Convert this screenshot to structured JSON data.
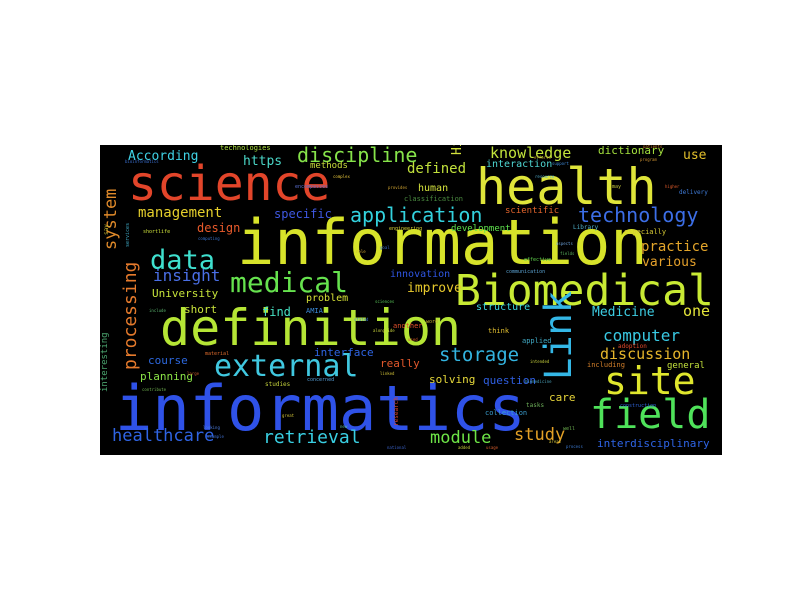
{
  "wordcloud": {
    "background": "#000000",
    "words": [
      {
        "text": "informatics",
        "color": "#2f52e8"
      },
      {
        "text": "information",
        "color": "#d7e32a"
      },
      {
        "text": "definition",
        "color": "#b5e535"
      },
      {
        "text": "health",
        "color": "#dfe53a"
      },
      {
        "text": "science",
        "color": "#e2452a"
      },
      {
        "text": "Biomedical",
        "color": "#c8ea34"
      },
      {
        "text": "field",
        "color": "#4fe25a"
      },
      {
        "text": "site",
        "color": "#dfe62d"
      },
      {
        "text": "Link",
        "color": "#34b7e6"
      },
      {
        "text": "external",
        "color": "#40c8e0"
      },
      {
        "text": "medical",
        "color": "#66e24e"
      },
      {
        "text": "data",
        "color": "#3fe0cf"
      },
      {
        "text": "application",
        "color": "#33d2de"
      },
      {
        "text": "technology",
        "color": "#3c6ee6"
      },
      {
        "text": "discipline",
        "color": "#86e34a"
      },
      {
        "text": "knowledge",
        "color": "#c2e33c"
      },
      {
        "text": "storage",
        "color": "#33b4e0"
      },
      {
        "text": "retrieval",
        "color": "#39cfe2"
      },
      {
        "text": "healthcare",
        "color": "#2f64e3"
      },
      {
        "text": "module",
        "color": "#6ee547"
      },
      {
        "text": "study",
        "color": "#e5a126"
      },
      {
        "text": "computer",
        "color": "#39c9e3"
      },
      {
        "text": "discussion",
        "color": "#e6b62b"
      },
      {
        "text": "system",
        "color": "#e08a2a"
      },
      {
        "text": "processing",
        "color": "#e57a2c"
      },
      {
        "text": "management",
        "color": "#e6d02c"
      },
      {
        "text": "insight",
        "color": "#4a6fe6"
      },
      {
        "text": "practice",
        "color": "#e3a52a"
      },
      {
        "text": "defined",
        "color": "#c1e13b"
      },
      {
        "text": "According",
        "color": "#3fd2e5"
      },
      {
        "text": "https",
        "color": "#4ad6c7"
      },
      {
        "text": "dictionary",
        "color": "#a4e13e"
      },
      {
        "text": "use",
        "color": "#e3c02c"
      },
      {
        "text": "one",
        "color": "#e5e63a"
      },
      {
        "text": "specific",
        "color": "#3f58e2"
      },
      {
        "text": "design",
        "color": "#e85a2b"
      },
      {
        "text": "find",
        "color": "#46e2c4"
      },
      {
        "text": "University",
        "color": "#c6e33a"
      },
      {
        "text": "Medicine",
        "color": "#3dcde2"
      },
      {
        "text": "various",
        "color": "#e4a02b"
      },
      {
        "text": "course",
        "color": "#2d68de"
      },
      {
        "text": "planning",
        "color": "#8be347"
      },
      {
        "text": "interface",
        "color": "#2e64e2"
      },
      {
        "text": "short",
        "color": "#c9e33c"
      },
      {
        "text": "improve",
        "color": "#e7c92d"
      },
      {
        "text": "innovation",
        "color": "#2f56e3"
      },
      {
        "text": "problem",
        "color": "#d7e237"
      },
      {
        "text": "structure",
        "color": "#3ad4e0"
      },
      {
        "text": "really",
        "color": "#e2582c"
      },
      {
        "text": "solving",
        "color": "#e6d93a"
      },
      {
        "text": "question",
        "color": "#2f5fe2"
      },
      {
        "text": "care",
        "color": "#e7d53a"
      },
      {
        "text": "interdisciplinary",
        "color": "#2e64e6"
      },
      {
        "text": "interaction",
        "color": "#4fd7d3"
      },
      {
        "text": "human",
        "color": "#d4e23d"
      },
      {
        "text": "scientific",
        "color": "#e2642c"
      },
      {
        "text": "development",
        "color": "#5fe34d"
      },
      {
        "text": "interesting",
        "color": "#4aa46e"
      },
      {
        "text": "methods",
        "color": "#c9dd3c"
      },
      {
        "text": "technologies",
        "color": "#aee242"
      },
      {
        "text": "classification",
        "color": "#4a8a40"
      },
      {
        "text": "Hi",
        "color": "#d4e23c"
      },
      {
        "text": "AMIA",
        "color": "#3c8ad8"
      },
      {
        "text": "applied",
        "color": "#40a9c4"
      },
      {
        "text": "including",
        "color": "#d17e2a"
      },
      {
        "text": "general",
        "color": "#c3e13d"
      },
      {
        "text": "collection",
        "color": "#3a9ccc"
      },
      {
        "text": "another",
        "color": "#e2502b"
      },
      {
        "text": "think",
        "color": "#e0be2f"
      },
      {
        "text": "especially",
        "color": "#d9cc36"
      },
      {
        "text": "Library",
        "color": "#4fb0c7"
      },
      {
        "text": "adoption",
        "color": "#e74a2b"
      },
      {
        "text": "tasks",
        "color": "#6eb05a"
      },
      {
        "text": "research",
        "color": "#d9442a"
      },
      {
        "text": "studies",
        "color": "#c4d23c"
      },
      {
        "text": "encompasses",
        "color": "#5a6fd1"
      },
      {
        "text": "services",
        "color": "#3ea7c2"
      },
      {
        "text": "word",
        "color": "#ccb534"
      },
      {
        "text": "material",
        "color": "#de6b2c"
      },
      {
        "text": "concerned",
        "color": "#57a0d8"
      },
      {
        "text": "delivery",
        "color": "#3f7bd8"
      },
      {
        "text": "engineering",
        "color": "#d8d437"
      },
      {
        "text": "effective",
        "color": "#5fd24c"
      },
      {
        "text": "construction",
        "color": "#2f64d8"
      },
      {
        "text": "communication",
        "color": "#5aa0cf"
      },
      {
        "text": "computing",
        "color": "#3870c9"
      },
      {
        "text": "biomedicine",
        "color": "#4aa0b8"
      },
      {
        "text": "shortlife",
        "color": "#cfe23c"
      },
      {
        "text": "say",
        "color": "#d6c233"
      },
      {
        "text": "may",
        "color": "#c0c23a"
      },
      {
        "text": "higher",
        "color": "#e05b2b"
      },
      {
        "text": "program",
        "color": "#c98e2f"
      },
      {
        "text": "support",
        "color": "#3e8ad8"
      },
      {
        "text": "efforts",
        "color": "#c6a532"
      },
      {
        "text": "resource",
        "color": "#55b3d3"
      },
      {
        "text": "well",
        "color": "#6cb04f"
      },
      {
        "text": "intended",
        "color": "#c8d23c"
      },
      {
        "text": "process",
        "color": "#3c7ad1"
      },
      {
        "text": "used",
        "color": "#d35a2b"
      },
      {
        "text": "sciences",
        "color": "#5ac85a"
      },
      {
        "text": "national",
        "color": "#3a62c8"
      },
      {
        "text": "alongside",
        "color": "#c9d33c"
      },
      {
        "text": "large",
        "color": "#c35a2c"
      },
      {
        "text": "example",
        "color": "#4070d1"
      },
      {
        "text": "linked",
        "color": "#d2c238"
      },
      {
        "text": "looking",
        "color": "#4d7de0"
      },
      {
        "text": "great",
        "color": "#d1c338"
      },
      {
        "text": "contribute",
        "color": "#6fb04f"
      },
      {
        "text": "bioinformatics",
        "color": "#3a6fd1"
      },
      {
        "text": "include",
        "color": "#5ab46e"
      },
      {
        "text": "provides",
        "color": "#d2a532"
      },
      {
        "text": "stated",
        "color": "#3e7fd8"
      },
      {
        "text": "patients",
        "color": "#c87a2e"
      },
      {
        "text": "aspects",
        "color": "#6da2da"
      },
      {
        "text": "added",
        "color": "#c9d13c"
      },
      {
        "text": "usage",
        "color": "#d05a2c"
      },
      {
        "text": "areas",
        "color": "#d4c63a"
      },
      {
        "text": "fields",
        "color": "#5ab460"
      },
      {
        "text": "complex",
        "color": "#e3c33b"
      },
      {
        "text": "goal",
        "color": "#3a6fd1"
      },
      {
        "text": "role",
        "color": "#d4a934"
      },
      {
        "text": "new",
        "color": "#5dc0a0"
      }
    ]
  }
}
